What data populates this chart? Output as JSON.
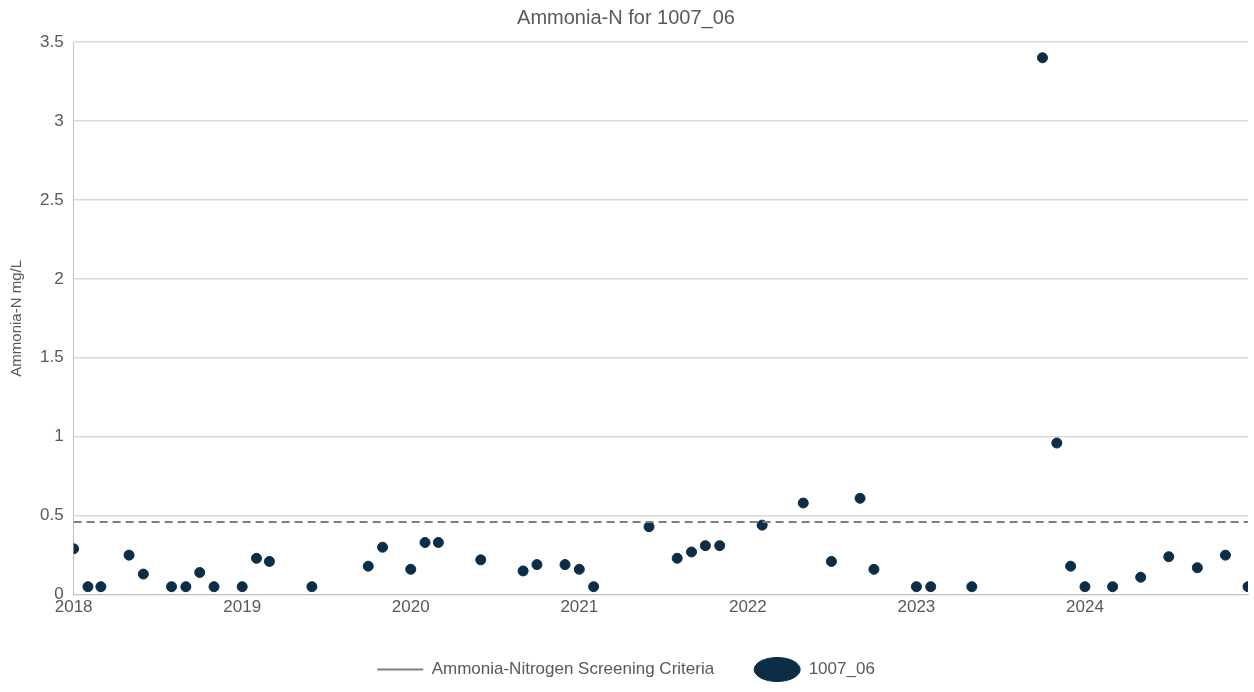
{
  "chart_data": {
    "type": "scatter",
    "title": "Ammonia-N for 1007_06",
    "ylabel": "Ammonia-N mg/L",
    "xlim": [
      "2018-01-01",
      "2024-12-20"
    ],
    "xticks": [
      "2018",
      "2019",
      "2020",
      "2021",
      "2022",
      "2023",
      "2024"
    ],
    "ylim": [
      0,
      3.5
    ],
    "yticks": [
      0,
      0.5,
      1,
      1.5,
      2,
      2.5,
      3,
      3.5
    ],
    "grid": "y",
    "legend": "bottom",
    "marker": "circle",
    "ref_lines": [
      {
        "axis": "y",
        "value": 0.46,
        "label": "Ammonia-Nitrogen Screening Criteria",
        "color": "#7f7f7f",
        "line_style": "dashed"
      }
    ],
    "series": [
      {
        "name": "1007_06",
        "color": "#0b2d45",
        "x": [
          "2018-01-01",
          "2018-02",
          "2018-03",
          "2018-05",
          "2018-06",
          "2018-08",
          "2018-09",
          "2018-10",
          "2018-11",
          "2019-01",
          "2019-02",
          "2019-03",
          "2019-06",
          "2019-10",
          "2019-11",
          "2020-01",
          "2020-02",
          "2020-03",
          "2020-06",
          "2020-09",
          "2020-10",
          "2020-12",
          "2021-01",
          "2021-02",
          "2021-06",
          "2021-08",
          "2021-09",
          "2021-10",
          "2021-11",
          "2022-02",
          "2022-05",
          "2022-07",
          "2022-09",
          "2022-10",
          "2023-01",
          "2023-02",
          "2023-05",
          "2023-10",
          "2023-11",
          "2023-12",
          "2024-01",
          "2024-03",
          "2024-05",
          "2024-07",
          "2024-09",
          "2024-11",
          "2024-12-20"
        ],
        "values": [
          0.29,
          0.05,
          0.05,
          0.25,
          0.13,
          0.05,
          0.05,
          0.14,
          0.05,
          0.05,
          0.23,
          0.21,
          0.05,
          0.18,
          0.3,
          0.16,
          0.33,
          0.33,
          0.22,
          0.15,
          0.19,
          0.19,
          0.16,
          0.05,
          0.43,
          0.23,
          0.27,
          0.31,
          0.31,
          0.44,
          0.58,
          0.21,
          0.61,
          0.16,
          0.05,
          0.05,
          0.05,
          3.4,
          0.96,
          0.18,
          0.05,
          0.05,
          0.11,
          0.24,
          0.17,
          0.25,
          0.05
        ]
      }
    ]
  }
}
